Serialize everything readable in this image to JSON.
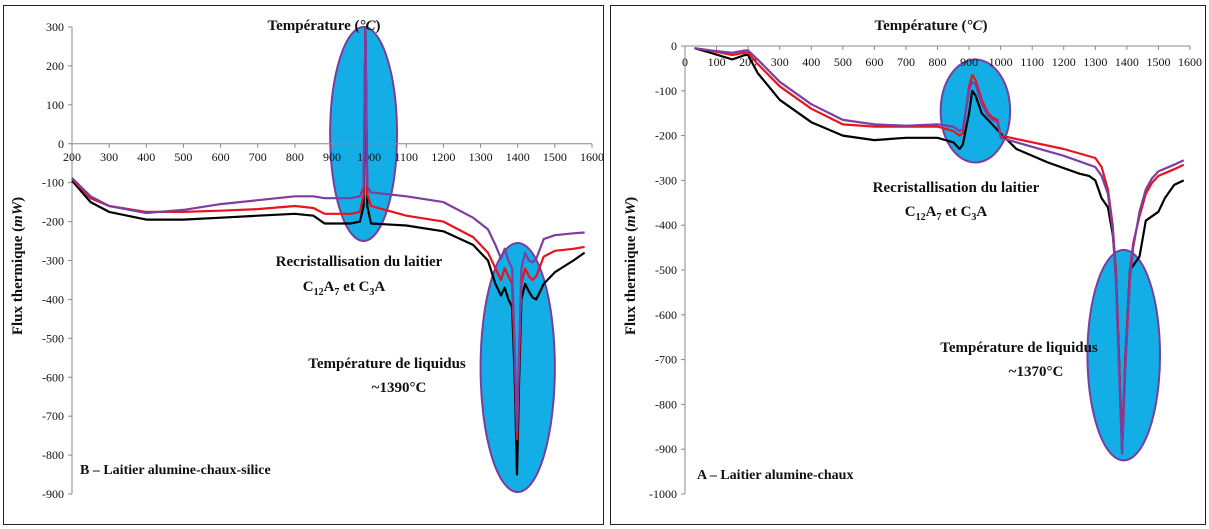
{
  "chart_data": [
    {
      "type": "line",
      "panel_label": "B – Laitier alumine-chaux-silice",
      "xlabel": "Température (°C)",
      "xlabel_parts": [
        "Température (",
        "°C",
        ")"
      ],
      "ylabel": "Flux thermique (mW)",
      "ylabel_parts": [
        "Flux thermique (",
        "mW",
        ")"
      ],
      "xlim": [
        200,
        1600
      ],
      "ylim": [
        -900,
        300
      ],
      "x_ticks": [
        200,
        300,
        400,
        500,
        600,
        700,
        800,
        900,
        1000,
        1100,
        1200,
        1300,
        1400,
        1500,
        1600
      ],
      "y_ticks": [
        300,
        200,
        100,
        0,
        -100,
        -200,
        -300,
        -400,
        -500,
        -600,
        -700,
        -800,
        -900
      ],
      "annotations": {
        "recryst": "Recristallisation du laitier",
        "phases": {
          "a": "C",
          "a_sub": "12",
          "b": "A",
          "b_sub": "7",
          "c": " et C",
          "d_sub": "3",
          "e": "A"
        },
        "liquidus": "Température de liquidus",
        "liquidus_temp": "~1390°C"
      },
      "ellipses": [
        {
          "cx": 985,
          "cy": 25,
          "rx": 90,
          "ry": 275
        },
        {
          "cx": 1400,
          "cy": -575,
          "rx": 100,
          "ry": 320
        }
      ],
      "series": [
        {
          "color": "#000000",
          "points": [
            [
              200,
              -95
            ],
            [
              250,
              -150
            ],
            [
              300,
              -175
            ],
            [
              400,
              -195
            ],
            [
              500,
              -195
            ],
            [
              600,
              -190
            ],
            [
              700,
              -185
            ],
            [
              800,
              -180
            ],
            [
              850,
              -185
            ],
            [
              880,
              -205
            ],
            [
              950,
              -205
            ],
            [
              975,
              -200
            ],
            [
              985,
              -160
            ],
            [
              990,
              300
            ],
            [
              995,
              -160
            ],
            [
              1005,
              -205
            ],
            [
              1100,
              -210
            ],
            [
              1200,
              -225
            ],
            [
              1280,
              -260
            ],
            [
              1320,
              -300
            ],
            [
              1340,
              -360
            ],
            [
              1355,
              -390
            ],
            [
              1365,
              -370
            ],
            [
              1375,
              -400
            ],
            [
              1385,
              -420
            ],
            [
              1392,
              -600
            ],
            [
              1398,
              -850
            ],
            [
              1404,
              -600
            ],
            [
              1410,
              -400
            ],
            [
              1420,
              -360
            ],
            [
              1430,
              -380
            ],
            [
              1440,
              -395
            ],
            [
              1450,
              -400
            ],
            [
              1470,
              -360
            ],
            [
              1500,
              -330
            ],
            [
              1550,
              -300
            ],
            [
              1580,
              -280
            ]
          ]
        },
        {
          "color": "#e8141b",
          "points": [
            [
              200,
              -90
            ],
            [
              250,
              -140
            ],
            [
              300,
              -160
            ],
            [
              400,
              -175
            ],
            [
              500,
              -175
            ],
            [
              600,
              -172
            ],
            [
              700,
              -168
            ],
            [
              800,
              -160
            ],
            [
              850,
              -165
            ],
            [
              880,
              -180
            ],
            [
              950,
              -180
            ],
            [
              975,
              -175
            ],
            [
              985,
              -130
            ],
            [
              990,
              300
            ],
            [
              995,
              -130
            ],
            [
              1005,
              -160
            ],
            [
              1100,
              -185
            ],
            [
              1200,
              -200
            ],
            [
              1280,
              -240
            ],
            [
              1320,
              -280
            ],
            [
              1340,
              -320
            ],
            [
              1355,
              -350
            ],
            [
              1365,
              -320
            ],
            [
              1375,
              -340
            ],
            [
              1385,
              -360
            ],
            [
              1392,
              -550
            ],
            [
              1398,
              -760
            ],
            [
              1404,
              -550
            ],
            [
              1410,
              -360
            ],
            [
              1420,
              -320
            ],
            [
              1430,
              -340
            ],
            [
              1440,
              -350
            ],
            [
              1450,
              -340
            ],
            [
              1470,
              -290
            ],
            [
              1500,
              -275
            ],
            [
              1550,
              -270
            ],
            [
              1580,
              -265
            ]
          ]
        },
        {
          "color": "#7b3fa3",
          "points": [
            [
              200,
              -88
            ],
            [
              250,
              -135
            ],
            [
              300,
              -160
            ],
            [
              400,
              -178
            ],
            [
              500,
              -170
            ],
            [
              600,
              -155
            ],
            [
              700,
              -145
            ],
            [
              800,
              -135
            ],
            [
              850,
              -135
            ],
            [
              880,
              -140
            ],
            [
              950,
              -140
            ],
            [
              975,
              -135
            ],
            [
              985,
              -110
            ],
            [
              990,
              300
            ],
            [
              995,
              -110
            ],
            [
              1005,
              -125
            ],
            [
              1100,
              -135
            ],
            [
              1200,
              -150
            ],
            [
              1280,
              -190
            ],
            [
              1320,
              -220
            ],
            [
              1340,
              -260
            ],
            [
              1355,
              -295
            ],
            [
              1365,
              -270
            ],
            [
              1375,
              -300
            ],
            [
              1385,
              -320
            ],
            [
              1392,
              -520
            ],
            [
              1398,
              -740
            ],
            [
              1404,
              -520
            ],
            [
              1410,
              -320
            ],
            [
              1420,
              -280
            ],
            [
              1430,
              -300
            ],
            [
              1440,
              -305
            ],
            [
              1450,
              -295
            ],
            [
              1470,
              -245
            ],
            [
              1500,
              -235
            ],
            [
              1550,
              -230
            ],
            [
              1580,
              -228
            ]
          ]
        }
      ]
    },
    {
      "type": "line",
      "panel_label": "A – Laitier alumine-chaux",
      "xlabel": "Température (°C)",
      "xlabel_parts": [
        "Température (",
        "°C",
        ")"
      ],
      "ylabel": "Flux thermique (mW)",
      "ylabel_parts": [
        "Flux thermique (",
        "mW",
        ")"
      ],
      "xlim": [
        0,
        1600
      ],
      "ylim": [
        -1000,
        0
      ],
      "x_ticks": [
        0,
        100,
        200,
        300,
        400,
        500,
        600,
        700,
        800,
        900,
        1000,
        1100,
        1200,
        1300,
        1400,
        1500,
        1600
      ],
      "y_ticks": [
        0,
        -100,
        -200,
        -300,
        -400,
        -500,
        -600,
        -700,
        -800,
        -900,
        -1000
      ],
      "annotations": {
        "recryst": "Recristallisation du laitier",
        "phases": {
          "a": "C",
          "a_sub": "12",
          "b": "A",
          "b_sub": "7",
          "c": " et C",
          "d_sub": "3",
          "e": "A"
        },
        "liquidus": "Température de liquidus",
        "liquidus_temp": "~1370°C"
      },
      "ellipses": [
        {
          "cx": 920,
          "cy": -145,
          "rx": 110,
          "ry": 115
        },
        {
          "cx": 1390,
          "cy": -690,
          "rx": 115,
          "ry": 235
        }
      ],
      "series": [
        {
          "color": "#000000",
          "points": [
            [
              30,
              -5
            ],
            [
              80,
              -15
            ],
            [
              150,
              -30
            ],
            [
              190,
              -20
            ],
            [
              200,
              -20
            ],
            [
              230,
              -60
            ],
            [
              300,
              -120
            ],
            [
              400,
              -170
            ],
            [
              500,
              -200
            ],
            [
              600,
              -210
            ],
            [
              700,
              -205
            ],
            [
              800,
              -205
            ],
            [
              850,
              -215
            ],
            [
              870,
              -230
            ],
            [
              880,
              -220
            ],
            [
              900,
              -150
            ],
            [
              910,
              -100
            ],
            [
              920,
              -110
            ],
            [
              940,
              -150
            ],
            [
              960,
              -165
            ],
            [
              980,
              -180
            ],
            [
              1000,
              -195
            ],
            [
              1050,
              -230
            ],
            [
              1150,
              -260
            ],
            [
              1250,
              -285
            ],
            [
              1280,
              -290
            ],
            [
              1300,
              -300
            ],
            [
              1310,
              -320
            ],
            [
              1320,
              -340
            ],
            [
              1340,
              -360
            ],
            [
              1355,
              -420
            ],
            [
              1365,
              -500
            ],
            [
              1375,
              -700
            ],
            [
              1385,
              -905
            ],
            [
              1395,
              -700
            ],
            [
              1410,
              -500
            ],
            [
              1420,
              -490
            ],
            [
              1440,
              -470
            ],
            [
              1460,
              -390
            ],
            [
              1480,
              -380
            ],
            [
              1500,
              -370
            ],
            [
              1520,
              -340
            ],
            [
              1550,
              -310
            ],
            [
              1580,
              -300
            ]
          ]
        },
        {
          "color": "#e8141b",
          "points": [
            [
              30,
              -5
            ],
            [
              80,
              -10
            ],
            [
              150,
              -20
            ],
            [
              190,
              -15
            ],
            [
              200,
              -15
            ],
            [
              230,
              -40
            ],
            [
              300,
              -90
            ],
            [
              400,
              -140
            ],
            [
              500,
              -175
            ],
            [
              600,
              -180
            ],
            [
              700,
              -180
            ],
            [
              800,
              -180
            ],
            [
              850,
              -190
            ],
            [
              870,
              -200
            ],
            [
              880,
              -195
            ],
            [
              900,
              -90
            ],
            [
              910,
              -65
            ],
            [
              920,
              -75
            ],
            [
              940,
              -120
            ],
            [
              960,
              -150
            ],
            [
              975,
              -160
            ],
            [
              990,
              -165
            ],
            [
              1000,
              -200
            ],
            [
              1100,
              -215
            ],
            [
              1200,
              -230
            ],
            [
              1300,
              -250
            ],
            [
              1320,
              -270
            ],
            [
              1340,
              -320
            ],
            [
              1355,
              -400
            ],
            [
              1365,
              -500
            ],
            [
              1375,
              -700
            ],
            [
              1385,
              -880
            ],
            [
              1395,
              -700
            ],
            [
              1410,
              -500
            ],
            [
              1420,
              -440
            ],
            [
              1440,
              -380
            ],
            [
              1460,
              -330
            ],
            [
              1480,
              -305
            ],
            [
              1500,
              -290
            ],
            [
              1550,
              -275
            ],
            [
              1580,
              -265
            ]
          ]
        },
        {
          "color": "#7b3fa3",
          "points": [
            [
              30,
              -5
            ],
            [
              80,
              -10
            ],
            [
              150,
              -15
            ],
            [
              190,
              -10
            ],
            [
              200,
              -10
            ],
            [
              230,
              -30
            ],
            [
              300,
              -80
            ],
            [
              400,
              -130
            ],
            [
              500,
              -165
            ],
            [
              600,
              -175
            ],
            [
              700,
              -178
            ],
            [
              800,
              -175
            ],
            [
              850,
              -180
            ],
            [
              870,
              -190
            ],
            [
              880,
              -185
            ],
            [
              900,
              -100
            ],
            [
              910,
              -80
            ],
            [
              920,
              -85
            ],
            [
              940,
              -130
            ],
            [
              960,
              -155
            ],
            [
              975,
              -165
            ],
            [
              990,
              -170
            ],
            [
              1000,
              -205
            ],
            [
              1100,
              -225
            ],
            [
              1200,
              -245
            ],
            [
              1300,
              -270
            ],
            [
              1320,
              -290
            ],
            [
              1340,
              -330
            ],
            [
              1355,
              -410
            ],
            [
              1365,
              -520
            ],
            [
              1375,
              -720
            ],
            [
              1385,
              -910
            ],
            [
              1395,
              -720
            ],
            [
              1410,
              -520
            ],
            [
              1420,
              -450
            ],
            [
              1440,
              -370
            ],
            [
              1460,
              -320
            ],
            [
              1480,
              -295
            ],
            [
              1500,
              -280
            ],
            [
              1550,
              -265
            ],
            [
              1580,
              -255
            ]
          ]
        }
      ]
    }
  ]
}
